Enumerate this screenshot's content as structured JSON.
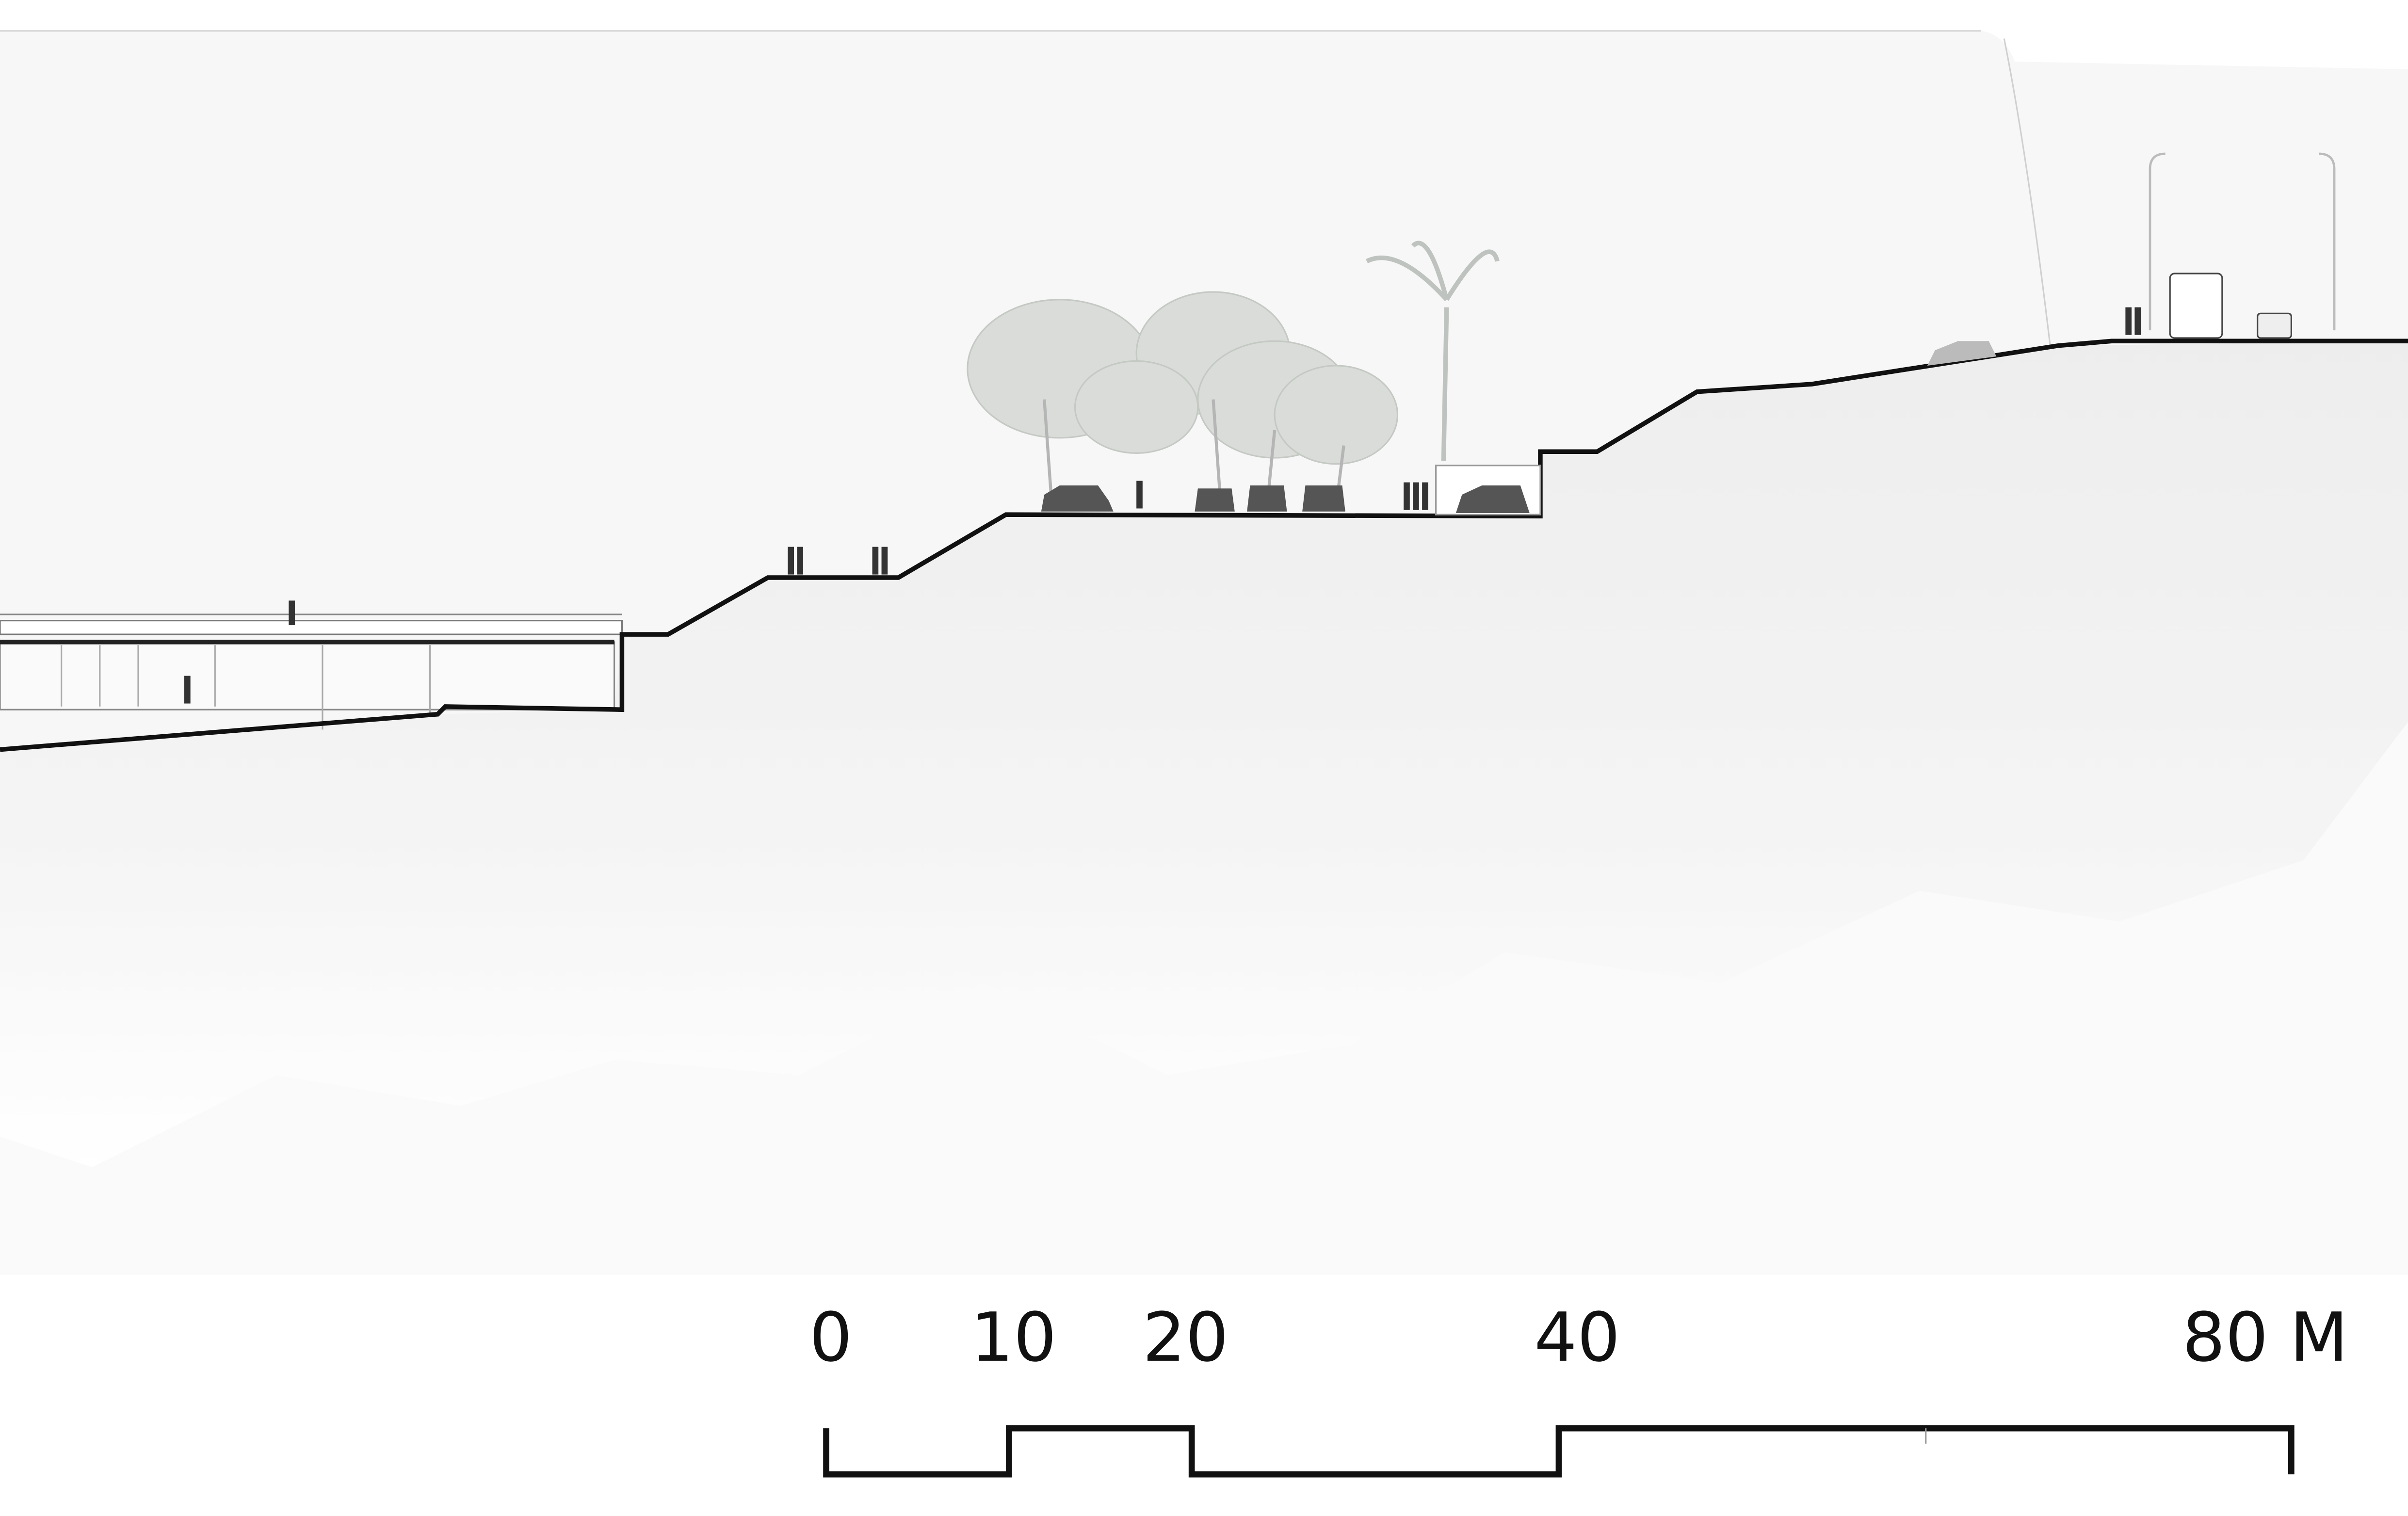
{
  "scale_bar": {
    "labels": [
      "0",
      "10",
      "20",
      "40",
      "80 M"
    ]
  }
}
